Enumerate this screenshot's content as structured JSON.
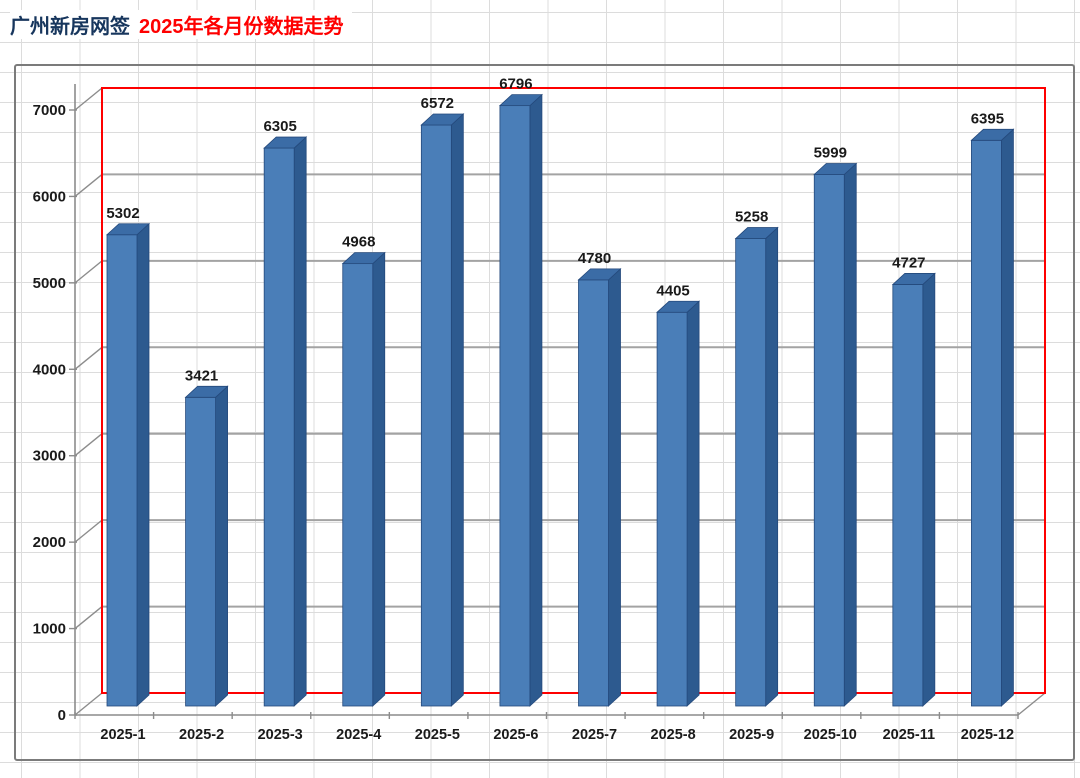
{
  "title": {
    "part1": "广州新房网签",
    "part2": "2025年各月份数据走势",
    "part1_color": "#17365d",
    "part2_color": "#fe0000"
  },
  "chart_data": {
    "type": "bar",
    "style": "3d-column",
    "title": "广州新房网签 2025年各月份数据走势",
    "xlabel": "",
    "ylabel": "",
    "categories": [
      "2025-1",
      "2025-2",
      "2025-3",
      "2025-4",
      "2025-5",
      "2025-6",
      "2025-7",
      "2025-8",
      "2025-9",
      "2025-10",
      "2025-11",
      "2025-12"
    ],
    "values": [
      5302,
      3421,
      6305,
      4968,
      6572,
      6796,
      4780,
      4405,
      5258,
      5999,
      4727,
      6395
    ],
    "data_labels_shown": true,
    "ylim": [
      0,
      7000
    ],
    "yticks": [
      0,
      1000,
      2000,
      3000,
      4000,
      5000,
      6000,
      7000
    ],
    "grid": true,
    "legend": false,
    "colors": {
      "bar_face": "#4a7eb8",
      "bar_top": "#3b6ca6",
      "bar_side": "#2d5a8f",
      "bar_outline": "#24497c",
      "wall_border": "#fe0000",
      "major_gridline": "#a3a3a3",
      "axis_line": "#8c8c8c",
      "label_text": "#1a1a1a"
    }
  }
}
